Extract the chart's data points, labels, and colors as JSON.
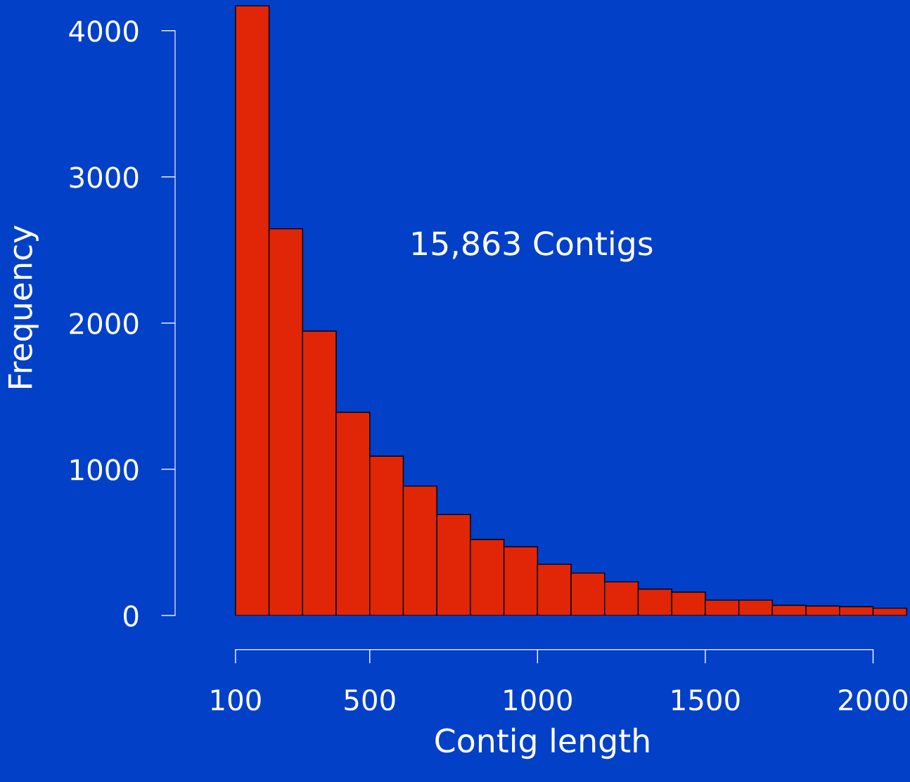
{
  "chart_data": {
    "type": "histogram",
    "xlabel": "Contig length",
    "ylabel": "Frequency",
    "bins": [
      100,
      200,
      300,
      400,
      500,
      600,
      700,
      800,
      900,
      1000,
      1100,
      1200,
      1300,
      1400,
      1500,
      1600,
      1700,
      1800,
      1900,
      2000,
      2100
    ],
    "values": [
      4170,
      2645,
      1945,
      1390,
      1090,
      885,
      690,
      520,
      470,
      350,
      290,
      230,
      180,
      160,
      105,
      105,
      70,
      65,
      60,
      50
    ],
    "color": "#e02606",
    "xlim": [
      -80,
      2110
    ],
    "ylim": [
      0,
      4210
    ],
    "xticks": [
      100,
      500,
      1000,
      1500,
      2000
    ],
    "yticks": [
      0,
      1000,
      2000,
      3000,
      4000
    ],
    "grid": false,
    "legend": false,
    "annotations": [
      "15,863 Contigs"
    ]
  }
}
